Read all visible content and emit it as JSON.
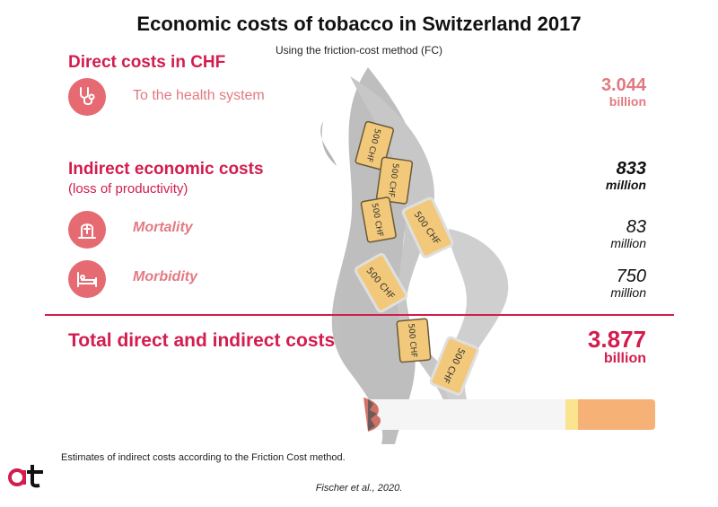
{
  "title": "Economic costs of tobacco in Switzerland 2017",
  "subtitle": "Using the friction-cost method (FC)",
  "direct": {
    "heading": "Direct costs in CHF",
    "health_label": "To the health system",
    "health_value": "3.044",
    "health_unit": "billion"
  },
  "indirect": {
    "heading": "Indirect economic costs",
    "subheading": "(loss of productivity)",
    "value": "833",
    "unit": "million",
    "mortality_label": "Mortality",
    "mortality_value": "83",
    "mortality_unit": "million",
    "morbidity_label": "Morbidity",
    "morbidity_value": "750",
    "morbidity_unit": "million"
  },
  "total": {
    "label": "Total direct and indirect costs",
    "value": "3.877",
    "unit": "billion"
  },
  "banknote_text": "500 CHF",
  "footnote": "Estimates of indirect costs according to the Friction Cost method.",
  "citation": "Fischer et al., 2020.",
  "logo_text": "at",
  "colors": {
    "accent": "#d21d4e",
    "accent_light": "#e27a82",
    "icon_bg": "#e66a72",
    "smoke": "#9b9b9b",
    "banknote": "#f2c97a",
    "filter": "#f6b177"
  },
  "icons": [
    "stethoscope-icon",
    "grave-icon",
    "hospital-bed-icon"
  ]
}
